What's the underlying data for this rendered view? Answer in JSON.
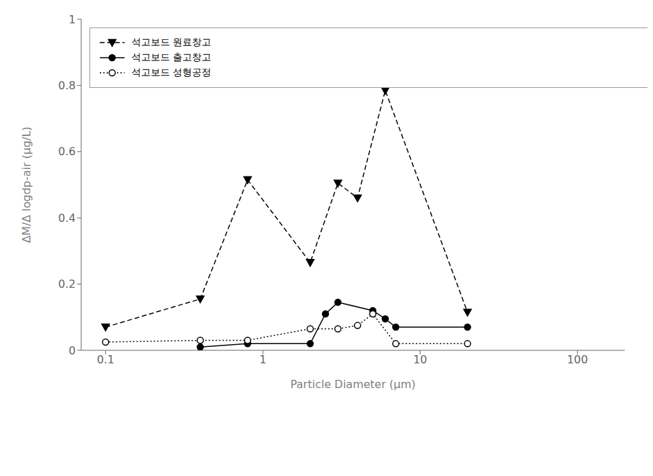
{
  "chart_data": {
    "type": "line",
    "xlabel": "Particle Diameter (μm)",
    "ylabel": "ΔM/Δ logdp-air (μg/L)",
    "log": "x",
    "xlim": [
      0.07,
      200
    ],
    "ylim": [
      0.0,
      1.0
    ],
    "xticks": [
      0.1,
      1,
      10,
      100
    ],
    "yticks": [
      0.0,
      0.2,
      0.4,
      0.6,
      0.8,
      1.0
    ],
    "grid": false,
    "legend": "upper left",
    "series": [
      {
        "name": "석고보드 원료창고",
        "x": [
          0.1,
          0.4,
          0.8,
          2.0,
          3.0,
          4.0,
          6.0,
          20.0
        ],
        "values": [
          0.07,
          0.155,
          0.515,
          0.265,
          0.505,
          0.46,
          0.785,
          0.115
        ],
        "color": "black",
        "marker": "triangle_down",
        "line_style": "dashed"
      },
      {
        "name": "석고보드 출고창고",
        "x": [
          0.4,
          0.8,
          2.0,
          2.5,
          3.0,
          5.0,
          6.0,
          7.0,
          20.0
        ],
        "values": [
          0.01,
          0.02,
          0.02,
          0.11,
          0.145,
          0.12,
          0.095,
          0.07,
          0.07
        ],
        "color": "black",
        "marker": "circle",
        "line_style": "solid"
      },
      {
        "name": "석고보드 성형공정",
        "x": [
          0.1,
          0.4,
          0.8,
          2.0,
          3.0,
          4.0,
          5.0,
          7.0,
          20.0
        ],
        "values": [
          0.025,
          0.03,
          0.03,
          0.065,
          0.065,
          0.075,
          0.11,
          0.02,
          0.02
        ],
        "color": "black",
        "marker": "open_circle",
        "line_style": "dotted"
      }
    ]
  }
}
